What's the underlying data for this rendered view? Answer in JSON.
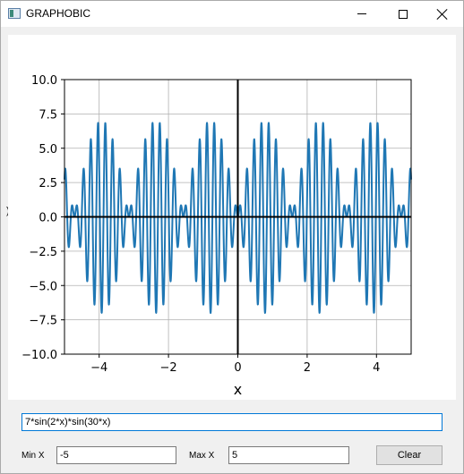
{
  "window": {
    "title": "GRAPHOBIC"
  },
  "controls": {
    "minimize_icon": "minimize-icon",
    "maximize_icon": "maximize-icon",
    "close_icon": "close-icon"
  },
  "colors": {
    "curve": "#1f77b4",
    "grid": "#b0b0b0",
    "axis_line": "#000000",
    "input_focus": "#0078d7"
  },
  "plot": {
    "ylabel_fragment": ")"
  },
  "chart_data": {
    "type": "line",
    "function": "7*sin(2*x)*sin(30*x)",
    "xlabel": "x",
    "ylabel": "",
    "xlim": [
      -5,
      5
    ],
    "ylim": [
      -10,
      10
    ],
    "xticks": [
      -4,
      -2,
      0,
      2,
      4
    ],
    "xtick_labels": [
      "−4",
      "−2",
      "0",
      "2",
      "4"
    ],
    "yticks": [
      10,
      7.5,
      5,
      2.5,
      0,
      -2.5,
      -5,
      -7.5,
      -10
    ],
    "ytick_labels": [
      "10.0",
      "7.5",
      "5.0",
      "2.5",
      "0.0",
      "−2.5",
      "−5.0",
      "−7.5",
      "−10.0"
    ],
    "grid": true,
    "sample_count": 2000
  },
  "form": {
    "formula_value": "7*sin(2*x)*sin(30*x)",
    "min_x_label": "Min X",
    "min_x_value": "-5",
    "max_x_label": "Max X",
    "max_x_value": "5",
    "clear_label": "Clear"
  }
}
